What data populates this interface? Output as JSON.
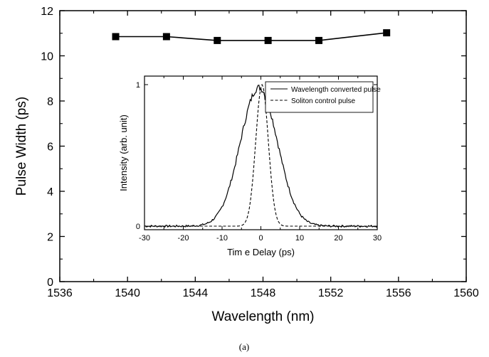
{
  "caption": "(a)",
  "chart_data": [
    {
      "type": "line",
      "xlabel": "Wavelength (nm)",
      "ylabel": "Pulse Width (ps)",
      "xlim": [
        1536,
        1560
      ],
      "ylim": [
        0,
        12
      ],
      "xticks": [
        1536,
        1540,
        1544,
        1548,
        1552,
        1556,
        1560
      ],
      "yticks": [
        0,
        2,
        4,
        6,
        8,
        10,
        12
      ],
      "marker": "square",
      "series": [
        {
          "x": [
            1539.3,
            1542.3,
            1545.3,
            1548.3,
            1551.3,
            1555.3
          ],
          "y": [
            10.85,
            10.85,
            10.68,
            10.68,
            10.68,
            11.02
          ]
        }
      ]
    },
    {
      "type": "line",
      "inset": true,
      "xlabel": "Tim e Delay (ps)",
      "ylabel": "Intensity (arb. unit)",
      "xlim": [
        -30,
        30
      ],
      "ylim": [
        0,
        1
      ],
      "xticks": [
        -30,
        -20,
        -10,
        0,
        10,
        20,
        30
      ],
      "yticks": [
        0,
        1
      ],
      "legend_position": "top-right",
      "series": [
        {
          "name": "Wavelength converted pulse",
          "style": "solid",
          "center": -0.5,
          "fwhm": 11.3,
          "peak": 0.98,
          "baseline": 0.0
        },
        {
          "name": "Soliton control pulse",
          "style": "dashed",
          "center": 0.3,
          "fwhm": 3.8,
          "peak": 1.0,
          "baseline": 0.0
        }
      ]
    }
  ]
}
